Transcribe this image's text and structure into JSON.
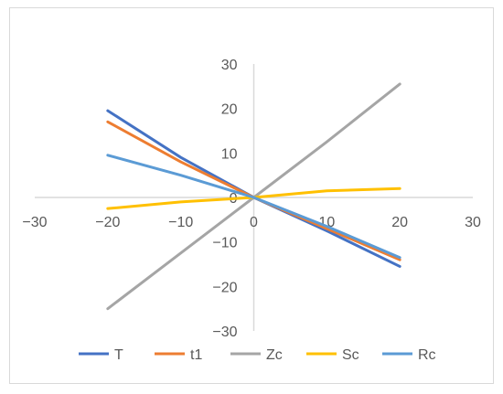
{
  "chart_data": {
    "type": "line",
    "title": "",
    "xlabel": "",
    "ylabel": "",
    "xlim": [
      -30,
      30
    ],
    "ylim": [
      -30,
      30
    ],
    "x_ticks": [
      -30,
      -20,
      -10,
      0,
      10,
      20,
      30
    ],
    "y_ticks": [
      30,
      20,
      10,
      0,
      -10,
      -20,
      -30
    ],
    "x_tick_labels": [
      "−30",
      "−20",
      "−10",
      "0",
      "10",
      "20",
      "30"
    ],
    "y_tick_labels": [
      "30",
      "20",
      "10",
      "0",
      "−10",
      "−20",
      "−30"
    ],
    "grid": false,
    "legend_position": "bottom",
    "series": [
      {
        "name": "T",
        "color": "#4472C4",
        "x": [
          -20,
          -10,
          0,
          10,
          20
        ],
        "y": [
          19.5,
          9.0,
          0,
          -7.5,
          -15.5
        ]
      },
      {
        "name": "t1",
        "color": "#ED7D31",
        "x": [
          -20,
          -10,
          0,
          10,
          20
        ],
        "y": [
          17.0,
          8.0,
          0,
          -7.0,
          -14.0
        ]
      },
      {
        "name": "Zc",
        "color": "#A5A5A5",
        "x": [
          -20,
          -10,
          0,
          10,
          20
        ],
        "y": [
          -25.0,
          -12.5,
          0,
          12.5,
          25.5
        ]
      },
      {
        "name": "Sc",
        "color": "#FFC000",
        "x": [
          -20,
          -10,
          0,
          10,
          20
        ],
        "y": [
          -2.5,
          -1.0,
          0,
          1.5,
          2.0
        ]
      },
      {
        "name": "Rc",
        "color": "#5B9BD5",
        "x": [
          -20,
          -10,
          0,
          10,
          20
        ],
        "y": [
          9.5,
          5.0,
          0,
          -6.5,
          -13.5
        ]
      }
    ]
  }
}
